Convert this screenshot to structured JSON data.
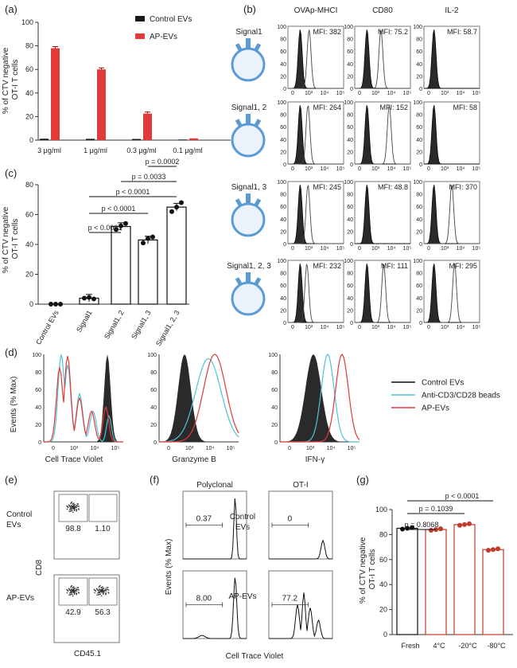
{
  "panel_labels": {
    "a": "(a)",
    "b": "(b)",
    "c": "(c)",
    "d": "(d)",
    "e": "(e)",
    "f": "(f)",
    "g": "(g)"
  },
  "colors": {
    "control": "#1a1a1a",
    "ap": "#e03a3a",
    "beads": "#4fc3d8",
    "red_line": "#c0392b",
    "vesicle": "#5b9bd5"
  },
  "chart_data": [
    {
      "id": "a",
      "type": "bar",
      "ylabel": "% of CTV negative OT-I T cells",
      "ylim": [
        0,
        100
      ],
      "yticks": [
        0,
        20,
        40,
        60,
        80,
        100
      ],
      "categories": [
        "3 μg/ml",
        "1 μg/ml",
        "0.3 μg/ml",
        "0.1 μg/ml"
      ],
      "series": [
        {
          "name": "Control EVs",
          "values": [
            1.2,
            1.1,
            1.0,
            0.5
          ]
        },
        {
          "name": "AP-EVs",
          "values": [
            78,
            60,
            22.5,
            1.5
          ]
        }
      ]
    },
    {
      "id": "c",
      "type": "bar",
      "ylabel": "% of CTV negative OT-I T cells",
      "ylim": [
        0,
        80
      ],
      "yticks": [
        0,
        20,
        40,
        60,
        80
      ],
      "categories": [
        "Control EVs",
        "Signal1",
        "Signal1, 2",
        "Signal1, 3",
        "Signal1, 2, 3"
      ],
      "values": [
        0,
        4,
        52,
        43,
        65
      ],
      "comparisons": [
        "p < 0.0001",
        "p < 0.0001",
        "p < 0.0001",
        "p = 0.0033",
        "p = 0.0002"
      ]
    },
    {
      "id": "g",
      "type": "bar",
      "ylabel": "% of CTV negative OT-I T cells",
      "ylim": [
        0,
        100
      ],
      "yticks": [
        0,
        20,
        40,
        60,
        80,
        100
      ],
      "categories": [
        "Fresh",
        "4°C",
        "-20°C",
        "-80°C"
      ],
      "values": [
        85,
        84,
        88,
        68
      ],
      "comparisons": [
        "p = 0.8068",
        "p = 0.1039",
        "p < 0.0001"
      ]
    }
  ],
  "legend_a": [
    "Control EVs",
    "AP-EVs"
  ],
  "panel_b": {
    "columns": [
      "OVAp-MHCI",
      "CD80",
      "IL-2"
    ],
    "rows": [
      "Signal1",
      "Signal1, 2",
      "Signal1, 3",
      "Signal1, 2, 3"
    ],
    "mfi": [
      [
        "MFI: 382",
        "MFI: 75.2",
        "MFI: 58.7"
      ],
      [
        "MFI: 264",
        "MFI: 152",
        "MFI: 58"
      ],
      [
        "MFI: 245",
        "MFI: 48.8",
        "MFI: 370"
      ],
      [
        "MFI: 232",
        "MFI: 111",
        "MFI: 295"
      ]
    ],
    "yticks": [
      "100",
      "80",
      "60",
      "40",
      "20",
      "0"
    ],
    "xticks": [
      "0",
      "10³",
      "10⁴",
      "10⁵"
    ]
  },
  "panel_d": {
    "ylabel": "Events (% Max)",
    "xlabels": [
      "Cell Trace Violet",
      "Granzyme B",
      "IFN-γ"
    ],
    "yticks": [
      "100",
      "80",
      "60",
      "40",
      "20",
      "0"
    ],
    "xticks": [
      "0",
      "10³",
      "10⁴",
      "10⁵"
    ],
    "legend": [
      "Control EVs",
      "Anti-CD3/CD28 beads",
      "AP-EVs"
    ]
  },
  "panel_e": {
    "rows": [
      "Control EVs",
      "AP-EVs"
    ],
    "ylabel": "CD8",
    "xlabel": "CD45.1",
    "values": [
      [
        "98.8",
        "1.10"
      ],
      [
        "42.9",
        "56.3"
      ]
    ]
  },
  "panel_f": {
    "columns": [
      "Polyclonal",
      "OT-I"
    ],
    "rows": [
      "Control EVs",
      "AP-EVs"
    ],
    "ylabel": "Events (% Max)",
    "xlabel": "Cell Trace Violet",
    "values": [
      [
        "0.37",
        "0"
      ],
      [
        "8.00",
        "77.2"
      ]
    ]
  }
}
